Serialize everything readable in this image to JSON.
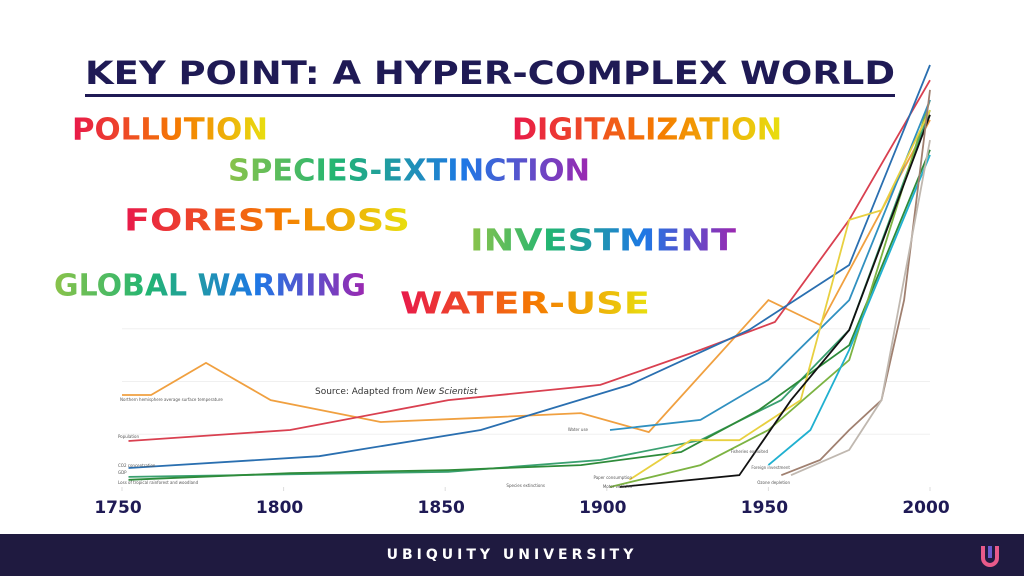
{
  "title": "KEY POINT: A HYPER-COMPLEX WORLD",
  "overlay_words": [
    "POLLUTION",
    "DIGITALIZATION",
    "SPECIES-EXTINCTION",
    "FOREST-LOSS",
    "INVESTMENT",
    "GLOBAL WARMING",
    "WATER-USE"
  ],
  "footer": "UBIQUITY UNIVERSITY",
  "chart_data": {
    "type": "line",
    "source": "Source: Adapted from",
    "source_publication": "New Scientist",
    "xlim": [
      1750,
      2000
    ],
    "xticks": [
      1750,
      1800,
      1850,
      1900,
      1950,
      2000
    ],
    "ylim": [
      0,
      100
    ],
    "series": [
      {
        "name": "Northern hemisphere average surface temperature",
        "color": "#f0a040",
        "x": [
          1750,
          1759,
          1776,
          1796,
          1830,
          1861,
          1892,
          1913,
          1950,
          1966,
          2000
        ],
        "values": [
          21.8,
          21.8,
          29.4,
          20.6,
          15.4,
          16.4,
          17.5,
          13,
          44.3,
          38.4,
          87
        ]
      },
      {
        "name": "Population",
        "color": "#d94050",
        "x": [
          1752,
          1802,
          1851,
          1898,
          1929,
          1952,
          1975,
          2000
        ],
        "values": [
          10.9,
          13.5,
          20.6,
          24.2,
          32.5,
          39.1,
          63.3,
          96.4
        ]
      },
      {
        "name": "CO2 concentration",
        "color": "#2a6fb0",
        "x": [
          1752,
          1811,
          1861,
          1907,
          1944,
          1975,
          2000
        ],
        "values": [
          4.5,
          7.3,
          13.5,
          24.2,
          37.2,
          52.6,
          100
        ]
      },
      {
        "name": "GDP",
        "color": "#3aa070",
        "x": [
          1752,
          1851,
          1898,
          1929,
          1954,
          1975,
          2000
        ],
        "values": [
          2.4,
          3.6,
          6.4,
          11.1,
          20.6,
          37.2,
          89.3
        ]
      },
      {
        "name": "Loss of tropical rainforest and woodland",
        "color": "#2e8b3a",
        "x": [
          1752,
          1802,
          1851,
          1892,
          1923,
          1947,
          1975,
          2000
        ],
        "values": [
          1.7,
          3.3,
          4,
          5.2,
          8.3,
          18.2,
          33.6,
          79.9
        ]
      },
      {
        "name": "Species extinctions",
        "color": "#7cb342",
        "x": [
          1901,
          1929,
          1950,
          1975,
          2000
        ],
        "values": [
          0,
          5.2,
          13.5,
          30.1,
          91.7
        ]
      },
      {
        "name": "Water use",
        "color": "#3090c0",
        "x": [
          1901,
          1929,
          1950,
          1975,
          2000
        ],
        "values": [
          13.5,
          15.9,
          25.4,
          44.3,
          91.7
        ]
      },
      {
        "name": "Paper consumption",
        "color": "#e8d040",
        "x": [
          1907,
          1926,
          1941,
          1960,
          1975,
          1985,
          2000
        ],
        "values": [
          1.7,
          11.1,
          11.1,
          20.6,
          63.3,
          65.6,
          89.3
        ]
      },
      {
        "name": "Motor vehicles",
        "color": "#111111",
        "x": [
          1904,
          1941,
          1957,
          1975,
          2000
        ],
        "values": [
          0,
          2.8,
          20.6,
          37.2,
          88.2
        ]
      },
      {
        "name": "Fisheries exploited",
        "color": "#20b0d0",
        "x": [
          1950,
          1963,
          1975,
          2000
        ],
        "values": [
          5.2,
          13.5,
          32.5,
          78.7
        ]
      },
      {
        "name": "Foreign investment",
        "color": "#a08070",
        "x": [
          1954,
          1966,
          1975,
          1985,
          1992,
          2000
        ],
        "values": [
          2.8,
          6.4,
          13.5,
          20.6,
          44.3,
          94.1
        ]
      },
      {
        "name": "Ozone depletion",
        "color": "#c0b8b0",
        "x": [
          1957,
          1975,
          1985,
          2000
        ],
        "values": [
          2.8,
          8.8,
          20.6,
          82.2
        ]
      }
    ]
  }
}
